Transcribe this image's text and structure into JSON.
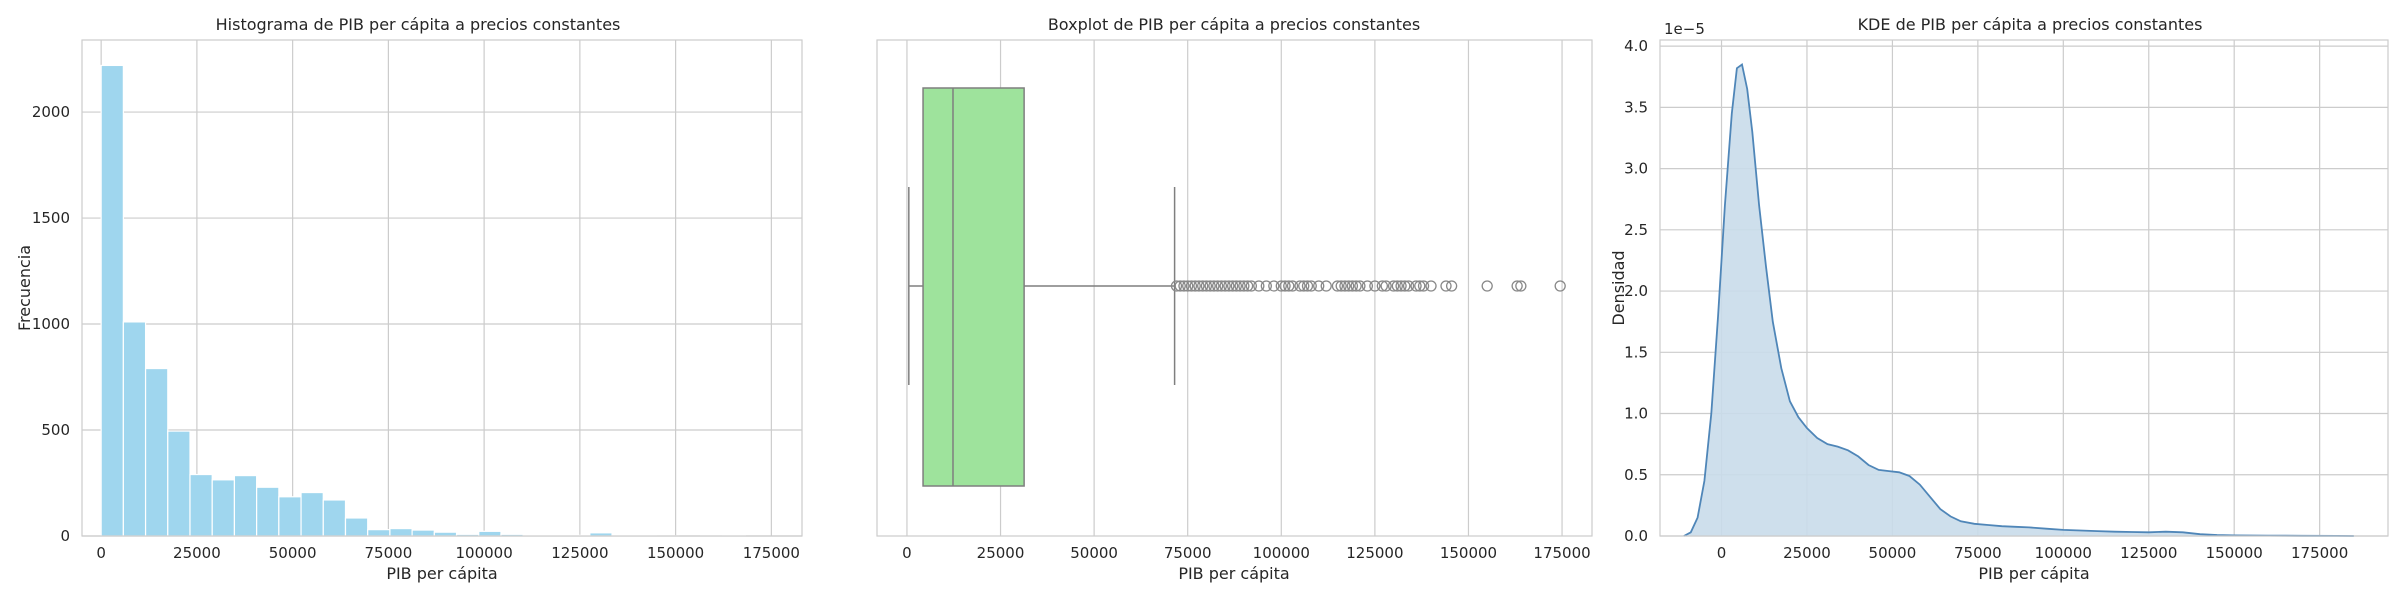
{
  "colors": {
    "hist_fill": "#9fd6ee",
    "box_fill": "#9ee39c",
    "kde_line": "#4f86b8",
    "kde_fill": "#c9dbea",
    "outlier": "#888888"
  },
  "chart_data": [
    {
      "type": "bar",
      "title": "Histograma de PIB per cápita a precios constantes",
      "xlabel": "PIB per cápita",
      "ylabel": "Frecuencia",
      "xlim": [
        -5000,
        183000
      ],
      "ylim": [
        0,
        2340
      ],
      "xticks": [
        0,
        25000,
        50000,
        75000,
        100000,
        125000,
        150000,
        175000
      ],
      "xtick_labels": [
        "0",
        "25000",
        "50000",
        "75000",
        "100000",
        "125000",
        "150000",
        "175000"
      ],
      "yticks": [
        0,
        500,
        1000,
        1500,
        2000
      ],
      "ytick_labels": [
        "0",
        "500",
        "1000",
        "1500",
        "2000"
      ],
      "bin_start": 0,
      "bin_width": 5800,
      "values": [
        2220,
        1010,
        790,
        495,
        290,
        265,
        285,
        230,
        185,
        205,
        170,
        85,
        30,
        35,
        28,
        18,
        8,
        22,
        8,
        5,
        4,
        3,
        15,
        5,
        2,
        1,
        0,
        1,
        2,
        0
      ],
      "grid": true
    },
    {
      "type": "boxplot",
      "title": "Boxplot de PIB per cápita a precios constantes",
      "xlabel": "PIB per cápita",
      "xlim": [
        -8000,
        183000
      ],
      "xticks": [
        0,
        25000,
        50000,
        75000,
        100000,
        125000,
        150000,
        175000
      ],
      "xtick_labels": [
        "0",
        "25000",
        "50000",
        "75000",
        "100000",
        "125000",
        "150000",
        "175000"
      ],
      "whisker_low": 500,
      "q1": 4300,
      "median": 12300,
      "q3": 31300,
      "whisker_high": 71500,
      "outliers": [
        72000,
        73000,
        74000,
        75000,
        76000,
        77000,
        78000,
        79000,
        80000,
        81000,
        82000,
        83000,
        84000,
        85000,
        86000,
        87000,
        88000,
        89000,
        90000,
        91000,
        92000,
        94000,
        96000,
        98000,
        100000,
        101000,
        102000,
        103000,
        105000,
        106000,
        107000,
        108000,
        110000,
        112000,
        115000,
        116000,
        117000,
        118000,
        119000,
        120000,
        121000,
        123000,
        125000,
        127000,
        128000,
        130000,
        131000,
        132000,
        133000,
        134000,
        136000,
        137000,
        138000,
        140000,
        144000,
        145500,
        155000,
        163000,
        164000,
        174500
      ],
      "grid": true
    },
    {
      "type": "area",
      "title": "KDE de PIB per cápita a precios constantes",
      "xlabel": "PIB per cápita",
      "ylabel": "Densidad",
      "offset_label": "1e−5",
      "xlim": [
        -18000,
        195000
      ],
      "ylim": [
        0,
        4.05
      ],
      "xticks": [
        0,
        25000,
        50000,
        75000,
        100000,
        125000,
        150000,
        175000
      ],
      "xtick_labels": [
        "0",
        "25000",
        "50000",
        "75000",
        "100000",
        "125000",
        "150000",
        "175000"
      ],
      "yticks": [
        0,
        0.5,
        1.0,
        1.5,
        2.0,
        2.5,
        3.0,
        3.5,
        4.0
      ],
      "ytick_labels": [
        "0.0",
        "0.5",
        "1.0",
        "1.5",
        "2.0",
        "2.5",
        "3.0",
        "3.5",
        "4.0"
      ],
      "x": [
        -11000,
        -9000,
        -7000,
        -5000,
        -3000,
        -1000,
        1000,
        3000,
        4500,
        6000,
        7500,
        9000,
        11000,
        13000,
        15000,
        17500,
        20000,
        22500,
        25000,
        28000,
        31000,
        34000,
        37000,
        40000,
        43000,
        46000,
        49000,
        52000,
        55000,
        58000,
        61000,
        64000,
        67000,
        70000,
        74000,
        78000,
        82000,
        86000,
        90000,
        95000,
        100000,
        105000,
        110000,
        115000,
        120000,
        125000,
        130000,
        135000,
        140000,
        145000,
        150000,
        160000,
        170000,
        180000,
        185000
      ],
      "y": [
        0.0,
        0.03,
        0.15,
        0.45,
        1.0,
        1.8,
        2.7,
        3.45,
        3.82,
        3.85,
        3.65,
        3.3,
        2.7,
        2.2,
        1.75,
        1.37,
        1.1,
        0.97,
        0.88,
        0.8,
        0.75,
        0.73,
        0.7,
        0.65,
        0.58,
        0.54,
        0.53,
        0.52,
        0.49,
        0.42,
        0.32,
        0.22,
        0.16,
        0.12,
        0.1,
        0.09,
        0.08,
        0.075,
        0.07,
        0.06,
        0.05,
        0.045,
        0.04,
        0.035,
        0.033,
        0.03,
        0.035,
        0.03,
        0.015,
        0.008,
        0.005,
        0.003,
        0.002,
        0.001,
        0.0
      ],
      "grid": true
    }
  ]
}
